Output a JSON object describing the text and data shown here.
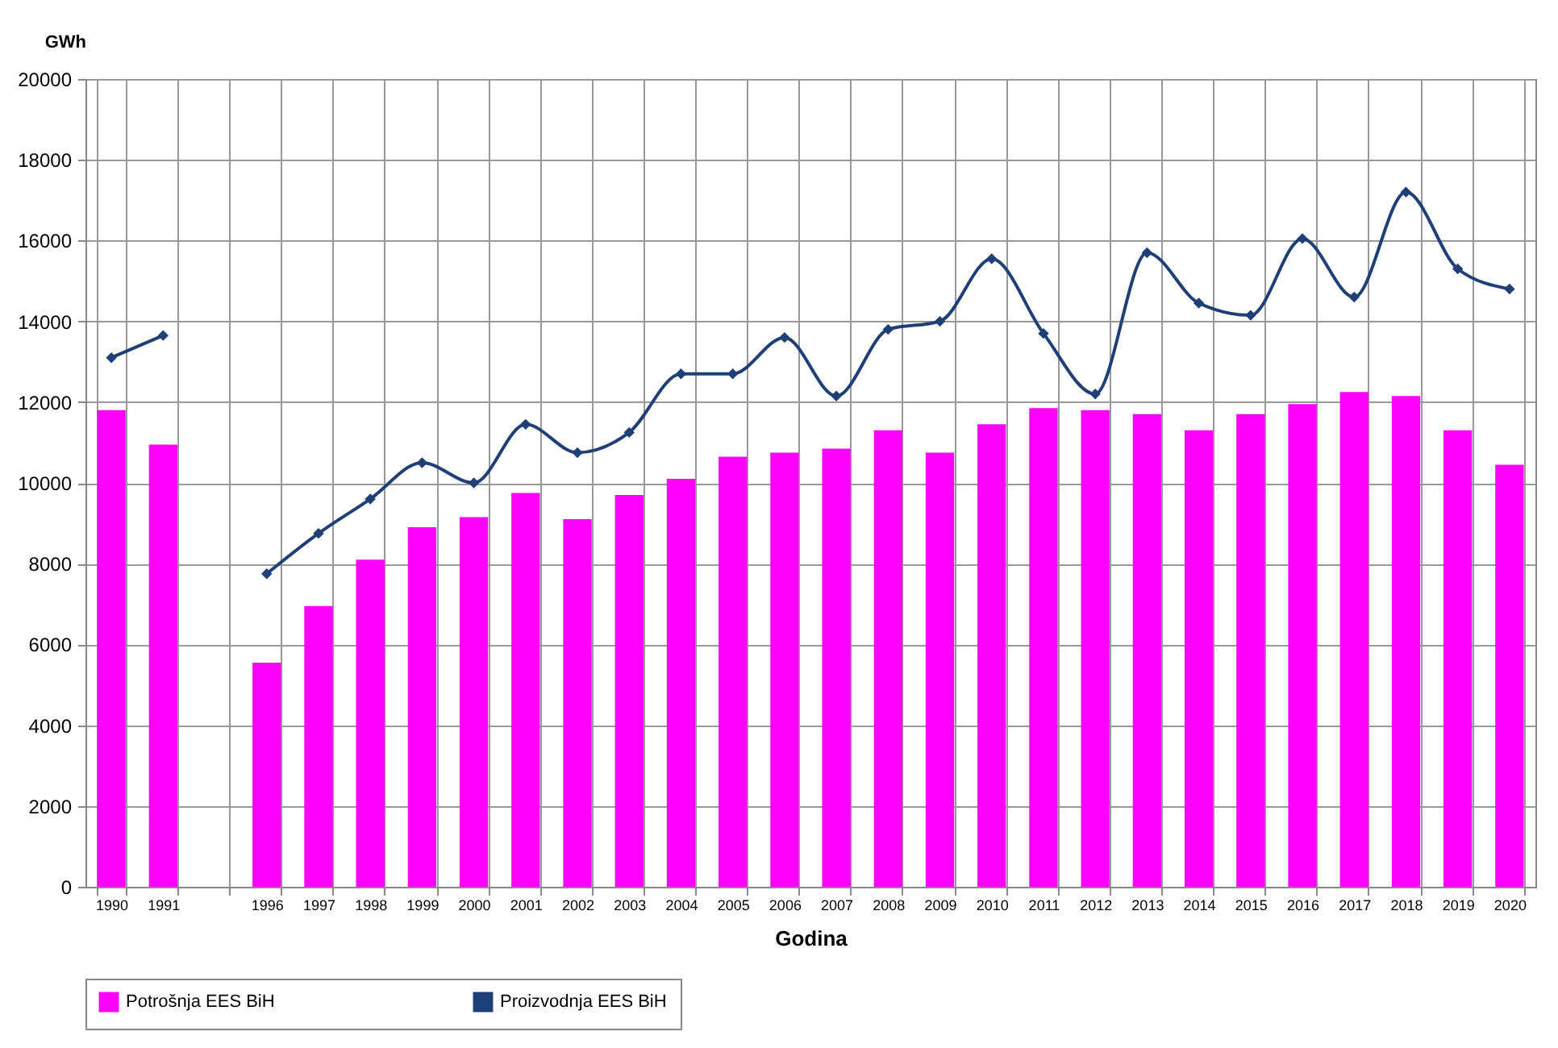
{
  "chart_data": {
    "type": "bar",
    "xlabel": "Godina",
    "ylabel": "GWh",
    "categories": [
      "1990",
      "1991",
      null,
      "1996",
      "1997",
      "1998",
      "1999",
      "2000",
      "2001",
      "2002",
      "2003",
      "2004",
      "2005",
      "2006",
      "2007",
      "2008",
      "2009",
      "2010",
      "2011",
      "2012",
      "2013",
      "2014",
      "2015",
      "2016",
      "2017",
      "2018",
      "2019",
      "2020"
    ],
    "series": [
      {
        "name": "Potrošnja EES BiH",
        "color": "#ff00ff",
        "values": [
          11800,
          10950,
          null,
          5550,
          6950,
          8100,
          8900,
          9150,
          9750,
          9100,
          9700,
          10100,
          10650,
          10750,
          10850,
          11300,
          10750,
          11450,
          11850,
          11800,
          11700,
          11300,
          11700,
          11950,
          12250,
          12150,
          11300,
          10450
        ]
      },
      {
        "name": "Proizvodnja EES BiH",
        "type": "line",
        "color": "#1f3f77",
        "values": [
          13100,
          13650,
          null,
          7750,
          8750,
          9600,
          10500,
          10000,
          11450,
          10750,
          11250,
          12700,
          12700,
          13600,
          12150,
          13800,
          14000,
          15550,
          13700,
          12200,
          15700,
          14450,
          14150,
          16050,
          14600,
          17200,
          15300,
          14800
        ]
      }
    ],
    "ylim": [
      0,
      20000
    ],
    "yticks": [
      0,
      2000,
      4000,
      6000,
      8000,
      10000,
      12000,
      14000,
      16000,
      18000,
      20000
    ],
    "grid": true,
    "legend": "bottom",
    "marker": "diamond",
    "line_style": "solid"
  }
}
